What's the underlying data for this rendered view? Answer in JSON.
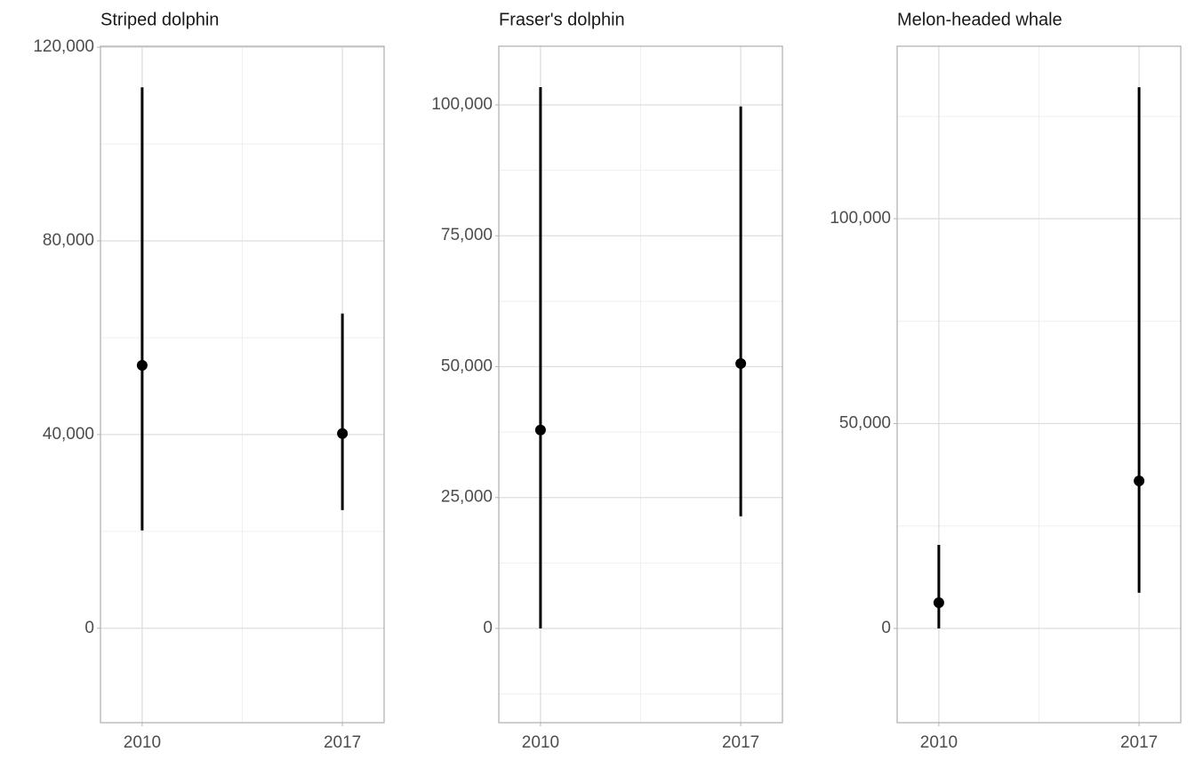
{
  "chart_data": [
    {
      "type": "pointrange",
      "title": "Striped dolphin",
      "categories": [
        "2010",
        "2017"
      ],
      "values": [
        54300,
        40200
      ],
      "lower": [
        20200,
        24400
      ],
      "upper": [
        111700,
        65000
      ],
      "color": "#000000",
      "grid": true,
      "ylim": [
        -19500,
        120200
      ],
      "yticks": [
        0,
        {
          "value": 40000,
          "label": "40,000"
        },
        {
          "value": 80000,
          "label": "80,000"
        },
        {
          "value": 120000,
          "label": "120,000"
        }
      ],
      "y_minor_ticks": [
        20000,
        60000,
        100000
      ]
    },
    {
      "type": "pointrange",
      "title": "Fraser's dolphin",
      "categories": [
        "2010",
        "2017"
      ],
      "values": [
        37900,
        50600
      ],
      "lower": [
        0,
        21400
      ],
      "upper": [
        103400,
        99700
      ],
      "color": "#000000",
      "grid": true,
      "ylim": [
        -18000,
        111200
      ],
      "yticks": [
        0,
        {
          "value": 25000,
          "label": "25,000"
        },
        {
          "value": 50000,
          "label": "50,000"
        },
        {
          "value": 75000,
          "label": "75,000"
        },
        {
          "value": 100000,
          "label": "100,000"
        }
      ],
      "y_minor_ticks": [
        -12500,
        12500,
        37500,
        62500,
        87500
      ]
    },
    {
      "type": "pointrange",
      "title": "Melon-headed whale",
      "categories": [
        "2010",
        "2017"
      ],
      "values": [
        6300,
        36000
      ],
      "lower": [
        0,
        8700
      ],
      "upper": [
        20400,
        132100
      ],
      "color": "#000000",
      "grid": true,
      "ylim": [
        -23000,
        142100
      ],
      "yticks": [
        0,
        {
          "value": 50000,
          "label": "50,000"
        },
        {
          "value": 100000,
          "label": "100,000"
        }
      ],
      "y_minor_ticks": [
        25000,
        75000,
        125000
      ]
    }
  ]
}
